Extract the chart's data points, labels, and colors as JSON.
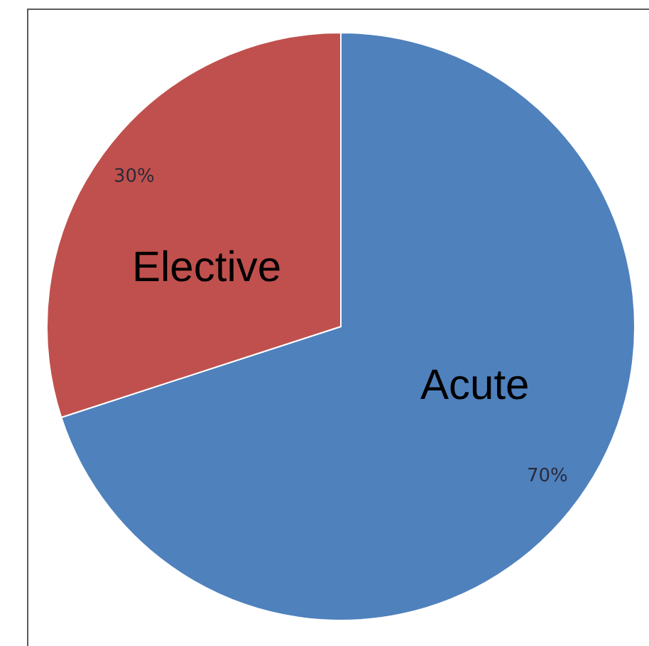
{
  "chart_data": {
    "type": "pie",
    "categories": [
      "Acute",
      "Elective"
    ],
    "values": [
      70,
      30
    ],
    "colors": [
      "#4f81bd",
      "#c0504d"
    ],
    "value_labels": [
      "70%",
      "30%"
    ],
    "legend": false
  }
}
